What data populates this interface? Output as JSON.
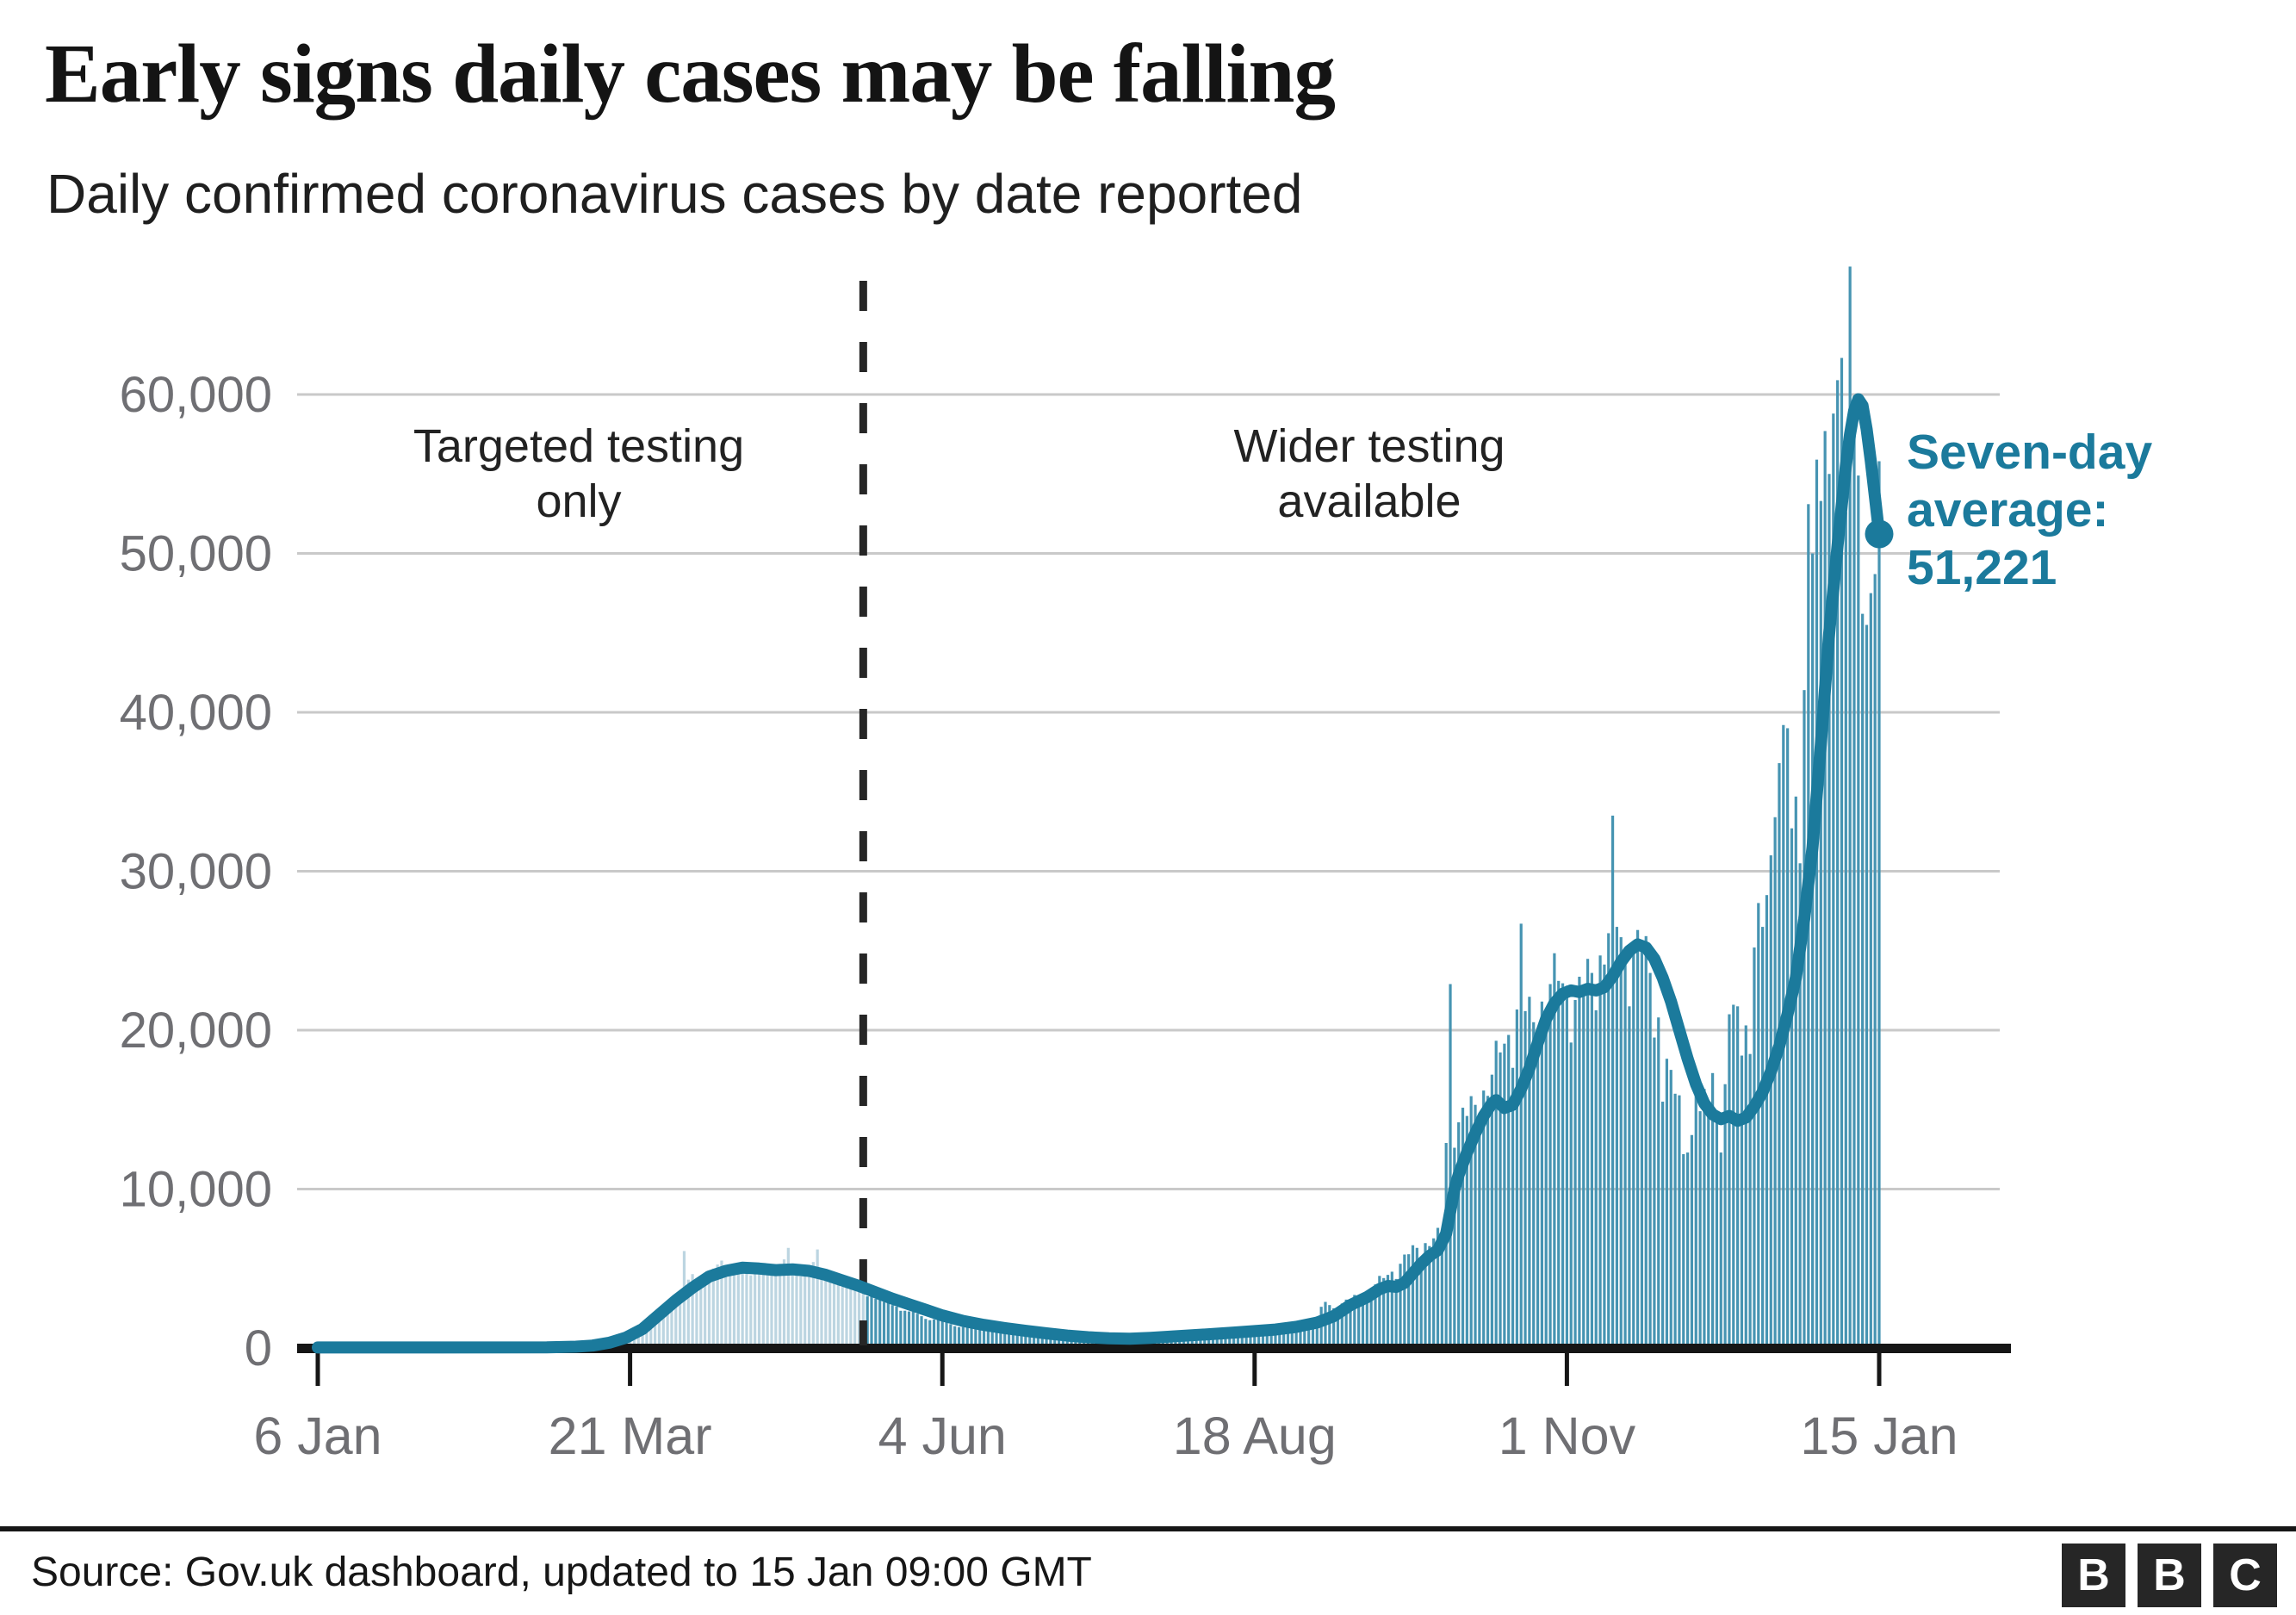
{
  "title": "Early signs daily cases may be falling",
  "subtitle": "Daily confirmed coronavirus cases by date reported",
  "footer": {
    "source": "Source: Gov.uk dashboard, updated to 15 Jan 09:00 GMT",
    "logo_letters": [
      "B",
      "B",
      "C"
    ]
  },
  "colors": {
    "bar_light": "#bcd5e1",
    "bar": "#4694b2",
    "line": "#1b7a9c",
    "grid": "#c9c9c9",
    "axis": "#161616",
    "tick_label": "#6f6f73",
    "phase_text": "#222222",
    "separator": "#262626"
  },
  "chart_data": {
    "type": "bar",
    "title": "Early signs daily cases may be falling",
    "subtitle": "Daily confirmed coronavirus cases by date reported",
    "x": {
      "start_date": "6 Jan 2020",
      "end_date": "15 Jan 2021",
      "tick_labels": [
        "6 Jan",
        "21 Mar",
        "4 Jun",
        "18 Aug",
        "1 Nov",
        "15 Jan"
      ],
      "tick_days": [
        0,
        75,
        150,
        225,
        300,
        375
      ],
      "total_days": 375
    },
    "y": {
      "tick_values": [
        0,
        10000,
        20000,
        30000,
        40000,
        50000,
        60000
      ],
      "tick_labels": [
        "0",
        "10,000",
        "20,000",
        "30,000",
        "40,000",
        "50,000",
        "60,000"
      ],
      "ylim": [
        0,
        68100
      ],
      "grid": "on"
    },
    "phase_labels": {
      "before_lines": [
        "Targeted testing",
        "only"
      ],
      "after_lines": [
        "Wider testing",
        "available"
      ],
      "separator_day": 131
    },
    "seven_day_average": {
      "name": "Seven-day average",
      "final_value": 51221,
      "label_lines": [
        "Seven-day",
        "average:",
        "51,221"
      ],
      "points": [
        [
          0,
          30
        ],
        [
          30,
          30
        ],
        [
          55,
          40
        ],
        [
          62,
          80
        ],
        [
          66,
          150
        ],
        [
          70,
          330
        ],
        [
          74,
          650
        ],
        [
          78,
          1200
        ],
        [
          82,
          2100
        ],
        [
          86,
          3000
        ],
        [
          90,
          3800
        ],
        [
          94,
          4500
        ],
        [
          98,
          4850
        ],
        [
          102,
          5050
        ],
        [
          106,
          5000
        ],
        [
          110,
          4900
        ],
        [
          114,
          4950
        ],
        [
          118,
          4850
        ],
        [
          122,
          4600
        ],
        [
          126,
          4250
        ],
        [
          130,
          3900
        ],
        [
          134,
          3500
        ],
        [
          138,
          3100
        ],
        [
          142,
          2750
        ],
        [
          146,
          2400
        ],
        [
          150,
          2050
        ],
        [
          155,
          1700
        ],
        [
          160,
          1450
        ],
        [
          165,
          1250
        ],
        [
          170,
          1080
        ],
        [
          175,
          920
        ],
        [
          180,
          780
        ],
        [
          185,
          680
        ],
        [
          190,
          610
        ],
        [
          195,
          580
        ],
        [
          200,
          640
        ],
        [
          205,
          720
        ],
        [
          210,
          800
        ],
        [
          215,
          880
        ],
        [
          220,
          970
        ],
        [
          225,
          1060
        ],
        [
          230,
          1160
        ],
        [
          235,
          1330
        ],
        [
          240,
          1600
        ],
        [
          244,
          2000
        ],
        [
          248,
          2700
        ],
        [
          252,
          3200
        ],
        [
          255,
          3700
        ],
        [
          257,
          3900
        ],
        [
          259,
          3850
        ],
        [
          261,
          4100
        ],
        [
          263,
          4700
        ],
        [
          265,
          5300
        ],
        [
          267,
          5800
        ],
        [
          269,
          6150
        ],
        [
          271,
          7200
        ],
        [
          272,
          8600
        ],
        [
          273,
          10000
        ],
        [
          274,
          10900
        ],
        [
          276,
          12300
        ],
        [
          278,
          13500
        ],
        [
          280,
          14600
        ],
        [
          282,
          15400
        ],
        [
          283,
          15600
        ],
        [
          285,
          15100
        ],
        [
          287,
          15300
        ],
        [
          289,
          16300
        ],
        [
          291,
          17600
        ],
        [
          293,
          19200
        ],
        [
          295,
          20700
        ],
        [
          297,
          21700
        ],
        [
          299,
          22300
        ],
        [
          301,
          22500
        ],
        [
          303,
          22400
        ],
        [
          305,
          22600
        ],
        [
          307,
          22500
        ],
        [
          309,
          22700
        ],
        [
          311,
          23400
        ],
        [
          313,
          24300
        ],
        [
          315,
          25000
        ],
        [
          317,
          25400
        ],
        [
          319,
          25200
        ],
        [
          321,
          24500
        ],
        [
          323,
          23300
        ],
        [
          325,
          21800
        ],
        [
          327,
          20000
        ],
        [
          329,
          18200
        ],
        [
          331,
          16600
        ],
        [
          333,
          15400
        ],
        [
          335,
          14700
        ],
        [
          337,
          14400
        ],
        [
          339,
          14600
        ],
        [
          341,
          14300
        ],
        [
          343,
          14500
        ],
        [
          345,
          15200
        ],
        [
          347,
          16100
        ],
        [
          349,
          17400
        ],
        [
          351,
          19000
        ],
        [
          353,
          21000
        ],
        [
          355,
          23300
        ],
        [
          357,
          27000
        ],
        [
          359,
          31500
        ],
        [
          361,
          38000
        ],
        [
          363,
          45000
        ],
        [
          365,
          50500
        ],
        [
          366,
          53000
        ],
        [
          367,
          55500
        ],
        [
          368,
          57500
        ],
        [
          369,
          59000
        ],
        [
          370,
          59700
        ],
        [
          371,
          59300
        ],
        [
          372,
          57800
        ],
        [
          373,
          55800
        ],
        [
          374,
          53500
        ],
        [
          375,
          51221
        ]
      ]
    },
    "daily_bars": {
      "name": "Daily confirmed cases",
      "anchors": [
        [
          0,
          5
        ],
        [
          40,
          10
        ],
        [
          55,
          30
        ],
        [
          60,
          80
        ],
        [
          63,
          150
        ],
        [
          66,
          280
        ],
        [
          69,
          450
        ],
        [
          72,
          700
        ],
        [
          75,
          1000
        ],
        [
          78,
          1500
        ],
        [
          81,
          2200
        ],
        [
          84,
          2900
        ],
        [
          87,
          3500
        ],
        [
          88,
          6100
        ],
        [
          89,
          4300
        ],
        [
          90,
          4650
        ],
        [
          93,
          4400
        ],
        [
          95,
          5000
        ],
        [
          97,
          5500
        ],
        [
          100,
          5200
        ],
        [
          103,
          4700
        ],
        [
          106,
          5100
        ],
        [
          109,
          4900
        ],
        [
          113,
          6300
        ],
        [
          114,
          4800
        ],
        [
          116,
          4500
        ],
        [
          120,
          6200
        ],
        [
          121,
          4700
        ],
        [
          124,
          4300
        ],
        [
          127,
          4000
        ],
        [
          130,
          3700
        ],
        [
          133,
          3300
        ],
        [
          136,
          2900
        ],
        [
          139,
          2600
        ],
        [
          142,
          2300
        ],
        [
          145,
          2000
        ],
        [
          148,
          1800
        ],
        [
          152,
          1500
        ],
        [
          156,
          1300
        ],
        [
          160,
          1150
        ],
        [
          164,
          1000
        ],
        [
          168,
          900
        ],
        [
          172,
          800
        ],
        [
          176,
          700
        ],
        [
          180,
          620
        ],
        [
          185,
          570
        ],
        [
          190,
          560
        ],
        [
          195,
          620
        ],
        [
          200,
          700
        ],
        [
          205,
          790
        ],
        [
          210,
          880
        ],
        [
          215,
          970
        ],
        [
          220,
          1060
        ],
        [
          225,
          1150
        ],
        [
          230,
          1280
        ],
        [
          235,
          1480
        ],
        [
          240,
          1900
        ],
        [
          242,
          2900
        ],
        [
          244,
          2500
        ],
        [
          246,
          2800
        ],
        [
          248,
          3000
        ],
        [
          250,
          3300
        ],
        [
          252,
          3600
        ],
        [
          254,
          4000
        ],
        [
          256,
          4400
        ],
        [
          258,
          4800
        ],
        [
          260,
          5300
        ],
        [
          262,
          5900
        ],
        [
          264,
          6300
        ],
        [
          266,
          6600
        ],
        [
          268,
          6900
        ],
        [
          270,
          7100
        ],
        [
          271,
          12900
        ],
        [
          272,
          22900
        ],
        [
          273,
          12600
        ],
        [
          274,
          14200
        ],
        [
          276,
          14600
        ],
        [
          278,
          15300
        ],
        [
          280,
          16200
        ],
        [
          282,
          17200
        ],
        [
          284,
          18600
        ],
        [
          286,
          19700
        ],
        [
          288,
          21300
        ],
        [
          289,
          26700
        ],
        [
          290,
          21200
        ],
        [
          292,
          20500
        ],
        [
          294,
          21800
        ],
        [
          296,
          22900
        ],
        [
          298,
          23100
        ],
        [
          300,
          22800
        ],
        [
          302,
          21900
        ],
        [
          304,
          22600
        ],
        [
          306,
          23600
        ],
        [
          308,
          24700
        ],
        [
          310,
          26100
        ],
        [
          311,
          33500
        ],
        [
          312,
          26500
        ],
        [
          314,
          25200
        ],
        [
          316,
          24800
        ],
        [
          318,
          25300
        ],
        [
          320,
          23600
        ],
        [
          322,
          20800
        ],
        [
          323,
          15500
        ],
        [
          324,
          18200
        ],
        [
          325,
          17500
        ],
        [
          326,
          16000
        ],
        [
          327,
          15900
        ],
        [
          328,
          12200
        ],
        [
          329,
          12300
        ],
        [
          330,
          13400
        ],
        [
          331,
          16200
        ],
        [
          332,
          14900
        ],
        [
          333,
          16300
        ],
        [
          334,
          15500
        ],
        [
          335,
          17300
        ],
        [
          336,
          14700
        ],
        [
          337,
          12300
        ],
        [
          338,
          16600
        ],
        [
          339,
          21000
        ],
        [
          340,
          21600
        ],
        [
          341,
          21500
        ],
        [
          342,
          18400
        ],
        [
          343,
          20300
        ],
        [
          344,
          18500
        ],
        [
          345,
          25200
        ],
        [
          346,
          28000
        ],
        [
          347,
          26500
        ],
        [
          348,
          28500
        ],
        [
          349,
          31000
        ],
        [
          350,
          33400
        ],
        [
          351,
          36800
        ],
        [
          352,
          39200
        ],
        [
          353,
          39000
        ],
        [
          354,
          32700
        ],
        [
          355,
          34700
        ],
        [
          356,
          30500
        ],
        [
          357,
          41400
        ],
        [
          358,
          53100
        ],
        [
          359,
          50000
        ],
        [
          360,
          55900
        ],
        [
          361,
          53300
        ],
        [
          362,
          57700
        ],
        [
          363,
          55000
        ],
        [
          364,
          58800
        ],
        [
          365,
          60900
        ],
        [
          366,
          62300
        ],
        [
          367,
          52600
        ],
        [
          368,
          68050
        ],
        [
          369,
          59900
        ],
        [
          370,
          54900
        ],
        [
          371,
          46200
        ],
        [
          372,
          45500
        ],
        [
          373,
          47500
        ],
        [
          374,
          48700
        ],
        [
          375,
          55800
        ]
      ],
      "weekly_pattern": {
        "weights": [
          0.86,
          0.95,
          1.05,
          1.08,
          1.06,
          1.0,
          0.88
        ],
        "full_after_day": 235
      }
    }
  }
}
